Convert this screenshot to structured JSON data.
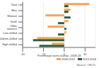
{
  "chart_data": {
    "type": "bar",
    "orientation": "horizontal",
    "x_label": "Percentage point change, 2008-18",
    "source": "Source: OECD.",
    "categories": [
      "Total",
      "Men",
      "Women",
      "Youth",
      "Older workers",
      "Low-skilled",
      "Medium-skilled",
      "High-skilled"
    ],
    "series": [
      {
        "name": "2008-2013",
        "color": "#f5a35c",
        "values": [
          12,
          3,
          -9,
          2,
          -8,
          1,
          -13,
          -6
        ]
      },
      {
        "name": "2013-2018",
        "color": "#2e5e3e",
        "values": [
          2,
          2,
          3,
          -3,
          1,
          -3,
          -15,
          -12
        ]
      }
    ],
    "xlim": [
      -20,
      15
    ],
    "xticks": [
      -20,
      -10,
      0,
      10
    ],
    "grid": true,
    "legend": "bottom right"
  }
}
